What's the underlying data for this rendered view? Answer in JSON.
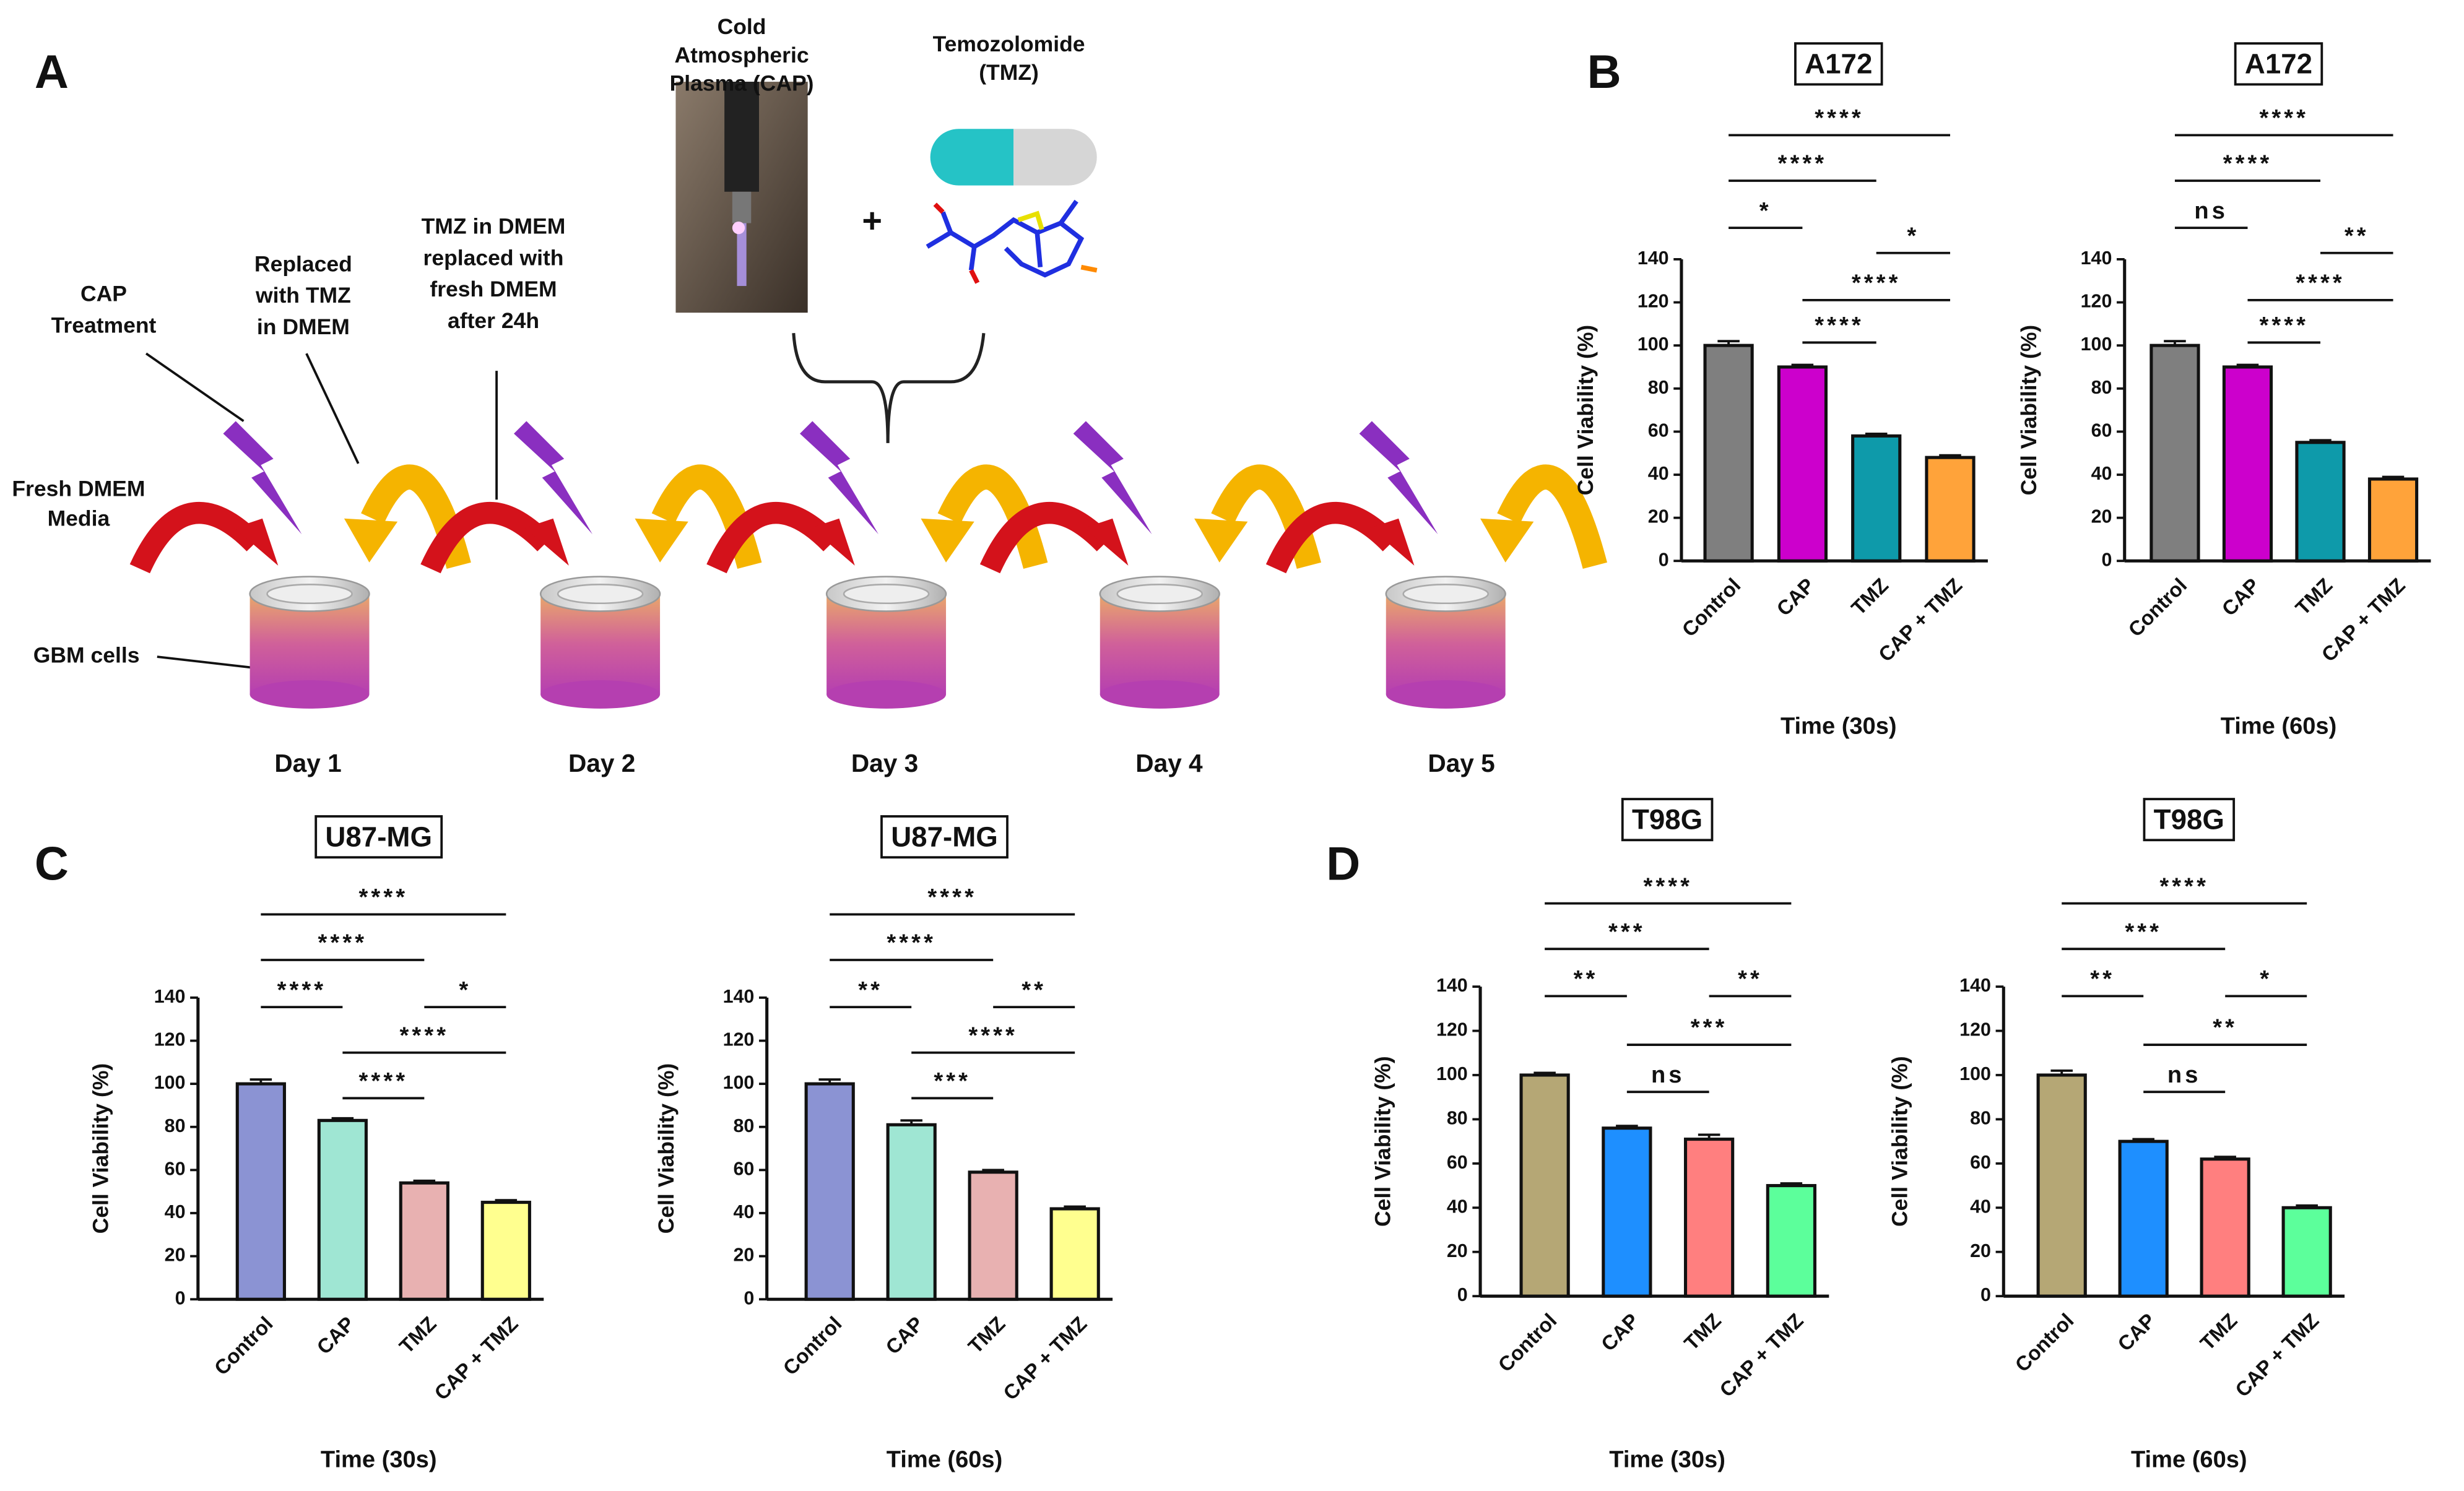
{
  "panels": [
    "A",
    "B",
    "C",
    "D"
  ],
  "diagram": {
    "cap_label": [
      "Cold",
      "Atmospheric",
      "Plasma (CAP)"
    ],
    "tmz_label": [
      "Temozolomide",
      "(TMZ)"
    ],
    "plus": "+",
    "cap_treatment": [
      "CAP",
      "Treatment"
    ],
    "replaced": [
      "Replaced",
      "with TMZ",
      "in DMEM"
    ],
    "tmz_replaced": [
      "TMZ in DMEM",
      "replaced with",
      "fresh DMEM",
      "after 24h"
    ],
    "fresh": [
      "Fresh DMEM",
      "Media"
    ],
    "gbm": "GBM cells",
    "days": [
      "Day 1",
      "Day 2",
      "Day 3",
      "Day 4",
      "Day 5"
    ]
  },
  "chart_data": [
    {
      "type": "bar",
      "title": "A172",
      "ylabel": "Cell Viability (%)",
      "xlabel": "Time (30s)",
      "categories": [
        "Control",
        "CAP",
        "TMZ",
        "CAP + TMZ"
      ],
      "values": [
        100,
        90,
        58,
        48
      ],
      "errors": [
        2,
        1,
        1,
        1
      ],
      "colors": [
        "#7f7f7f",
        "#cc00cc",
        "#0e9aaa",
        "#ffa33a"
      ],
      "ylim": [
        0,
        140
      ],
      "yticks": [
        0,
        20,
        40,
        60,
        80,
        100,
        120,
        140
      ],
      "comparisons": [
        {
          "span": [
            0,
            3
          ],
          "label": "****"
        },
        {
          "span": [
            0,
            2
          ],
          "label": "****"
        },
        {
          "span": [
            0,
            1
          ],
          "label": "*"
        },
        {
          "span": [
            2,
            3
          ],
          "label": "*"
        },
        {
          "span": [
            1,
            3
          ],
          "label": "****"
        },
        {
          "span": [
            1,
            2
          ],
          "label": "****"
        }
      ]
    },
    {
      "type": "bar",
      "title": "A172",
      "ylabel": "Cell Viability (%)",
      "xlabel": "Time (60s)",
      "categories": [
        "Control",
        "CAP",
        "TMZ",
        "CAP + TMZ"
      ],
      "values": [
        100,
        90,
        55,
        38
      ],
      "errors": [
        2,
        1,
        1,
        1
      ],
      "colors": [
        "#7f7f7f",
        "#cc00cc",
        "#0e9aaa",
        "#ffa33a"
      ],
      "ylim": [
        0,
        140
      ],
      "yticks": [
        0,
        20,
        40,
        60,
        80,
        100,
        120,
        140
      ],
      "comparisons": [
        {
          "span": [
            0,
            3
          ],
          "label": "****"
        },
        {
          "span": [
            0,
            2
          ],
          "label": "****"
        },
        {
          "span": [
            0,
            1
          ],
          "label": "ns"
        },
        {
          "span": [
            2,
            3
          ],
          "label": "**"
        },
        {
          "span": [
            1,
            3
          ],
          "label": "****"
        },
        {
          "span": [
            1,
            2
          ],
          "label": "****"
        }
      ]
    },
    {
      "type": "bar",
      "title": "U87-MG",
      "ylabel": "Cell Viability (%)",
      "xlabel": "Time (30s)",
      "categories": [
        "Control",
        "CAP",
        "TMZ",
        "CAP + TMZ"
      ],
      "values": [
        100,
        83,
        54,
        45
      ],
      "errors": [
        2,
        1,
        1,
        1
      ],
      "colors": [
        "#8b93d3",
        "#9fe6d3",
        "#e8b1b1",
        "#ffff8f"
      ],
      "ylim": [
        0,
        140
      ],
      "yticks": [
        0,
        20,
        40,
        60,
        80,
        100,
        120,
        140
      ],
      "comparisons": [
        {
          "span": [
            0,
            3
          ],
          "label": "****"
        },
        {
          "span": [
            0,
            2
          ],
          "label": "****"
        },
        {
          "span": [
            0,
            1
          ],
          "label": "****"
        },
        {
          "span": [
            2,
            3
          ],
          "label": "*"
        },
        {
          "span": [
            1,
            3
          ],
          "label": "****"
        },
        {
          "span": [
            1,
            2
          ],
          "label": "****"
        }
      ]
    },
    {
      "type": "bar",
      "title": "U87-MG",
      "ylabel": "Cell Viability (%)",
      "xlabel": "Time (60s)",
      "categories": [
        "Control",
        "CAP",
        "TMZ",
        "CAP + TMZ"
      ],
      "values": [
        100,
        81,
        59,
        42
      ],
      "errors": [
        2,
        2,
        1,
        1
      ],
      "colors": [
        "#8b93d3",
        "#9fe6d3",
        "#e8b1b1",
        "#ffff8f"
      ],
      "ylim": [
        0,
        140
      ],
      "yticks": [
        0,
        20,
        40,
        60,
        80,
        100,
        120,
        140
      ],
      "comparisons": [
        {
          "span": [
            0,
            3
          ],
          "label": "****"
        },
        {
          "span": [
            0,
            2
          ],
          "label": "****"
        },
        {
          "span": [
            0,
            1
          ],
          "label": "**"
        },
        {
          "span": [
            2,
            3
          ],
          "label": "**"
        },
        {
          "span": [
            1,
            3
          ],
          "label": "****"
        },
        {
          "span": [
            1,
            2
          ],
          "label": "***"
        }
      ]
    },
    {
      "type": "bar",
      "title": "T98G",
      "ylabel": "Cell Viability (%)",
      "xlabel": "Time (30s)",
      "categories": [
        "Control",
        "CAP",
        "TMZ",
        "CAP + TMZ"
      ],
      "values": [
        100,
        76,
        71,
        50
      ],
      "errors": [
        1,
        1,
        2,
        1
      ],
      "colors": [
        "#b5a775",
        "#1e8fff",
        "#ff7f7f",
        "#5cff9b"
      ],
      "ylim": [
        0,
        140
      ],
      "yticks": [
        0,
        20,
        40,
        60,
        80,
        100,
        120,
        140
      ],
      "comparisons": [
        {
          "span": [
            0,
            3
          ],
          "label": "****"
        },
        {
          "span": [
            0,
            2
          ],
          "label": "***"
        },
        {
          "span": [
            0,
            1
          ],
          "label": "**"
        },
        {
          "span": [
            2,
            3
          ],
          "label": "**"
        },
        {
          "span": [
            1,
            3
          ],
          "label": "***"
        },
        {
          "span": [
            1,
            2
          ],
          "label": "ns"
        }
      ]
    },
    {
      "type": "bar",
      "title": "T98G",
      "ylabel": "Cell Viability (%)",
      "xlabel": "Time (60s)",
      "categories": [
        "Control",
        "CAP",
        "TMZ",
        "CAP + TMZ"
      ],
      "values": [
        100,
        70,
        62,
        40
      ],
      "errors": [
        2,
        1,
        1,
        1
      ],
      "colors": [
        "#b5a775",
        "#1e8fff",
        "#ff7f7f",
        "#5cff9b"
      ],
      "ylim": [
        0,
        140
      ],
      "yticks": [
        0,
        20,
        40,
        60,
        80,
        100,
        120,
        140
      ],
      "comparisons": [
        {
          "span": [
            0,
            3
          ],
          "label": "****"
        },
        {
          "span": [
            0,
            2
          ],
          "label": "***"
        },
        {
          "span": [
            0,
            1
          ],
          "label": "**"
        },
        {
          "span": [
            2,
            3
          ],
          "label": "*"
        },
        {
          "span": [
            1,
            3
          ],
          "label": "**"
        },
        {
          "span": [
            1,
            2
          ],
          "label": "ns"
        }
      ]
    }
  ]
}
